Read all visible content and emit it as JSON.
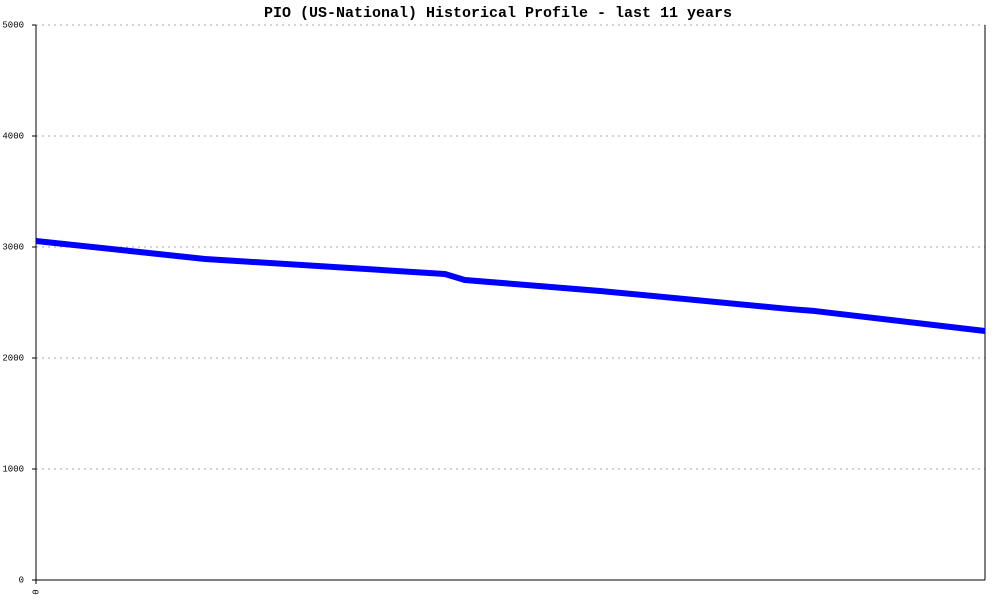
{
  "chart_data": {
    "type": "line",
    "title": "PIO (US-National) Historical Profile - last 11 years",
    "x": [
      0,
      1.96,
      4.74,
      4.97,
      6.54,
      8.74,
      9.03,
      11
    ],
    "values": [
      3054,
      2892,
      2757,
      2703,
      2604,
      2441,
      2423,
      2243
    ],
    "color": "#0000ff",
    "xlim": [
      0,
      11
    ],
    "xticks": [
      0
    ],
    "ylim": [
      0,
      5000
    ],
    "yticks": [
      0,
      1000,
      2000,
      3000,
      4000,
      5000
    ],
    "grid": true
  }
}
